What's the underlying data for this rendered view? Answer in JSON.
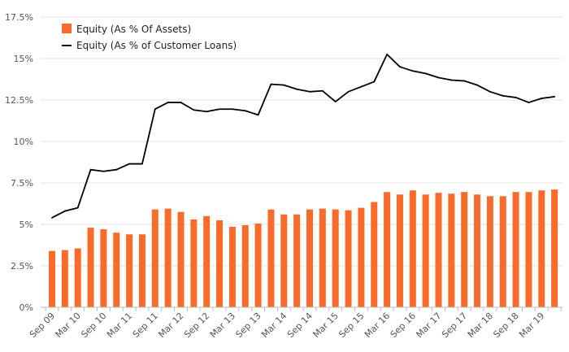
{
  "chart_data": {
    "type": "bar",
    "y_ticks": [
      "0%",
      "2.5%",
      "5%",
      "7.5%",
      "10%",
      "12.5%",
      "15%",
      "17.5%"
    ],
    "ylim": [
      0,
      17.5
    ],
    "grid": true,
    "legend_position": "top-left",
    "colors": {
      "bars": "#f86b2a",
      "line": "#000000",
      "grid": "#e3e3e3"
    },
    "x_ticks": [
      "Sep 09",
      "Mar 10",
      "Sep 10",
      "Mar 11",
      "Sep 11",
      "Mar 12",
      "Sep 12",
      "Mar 13",
      "Sep 13",
      "Mar 14",
      "Sep 14",
      "Mar 15",
      "Sep 15",
      "Mar 16",
      "Sep 16",
      "Mar 17",
      "Sep 17",
      "Mar 18",
      "Sep 18",
      "Mar 19"
    ],
    "series": [
      {
        "name": "Equity (As % Of Assets)",
        "type": "bar",
        "values": [
          3.4,
          3.45,
          3.55,
          4.8,
          4.7,
          4.5,
          4.4,
          4.4,
          5.9,
          5.95,
          5.75,
          5.3,
          5.5,
          5.25,
          4.85,
          4.95,
          5.05,
          5.9,
          5.6,
          5.6,
          5.9,
          5.95,
          5.9,
          5.85,
          6.0,
          6.35,
          6.95,
          6.8,
          7.05,
          6.8,
          6.9,
          6.85,
          6.95,
          6.8,
          6.7,
          6.7,
          6.95,
          6.95,
          7.05,
          7.1
        ]
      },
      {
        "name": "Equity (As % of Customer Loans)",
        "type": "line",
        "values": [
          5.4,
          5.8,
          6.0,
          8.3,
          8.2,
          8.3,
          8.65,
          8.65,
          11.95,
          12.35,
          12.35,
          11.9,
          11.8,
          11.95,
          11.95,
          11.85,
          11.6,
          13.45,
          13.4,
          13.15,
          13.0,
          13.05,
          12.4,
          13.0,
          13.3,
          13.6,
          15.25,
          14.5,
          14.25,
          14.1,
          13.85,
          13.7,
          13.65,
          13.4,
          13.0,
          12.75,
          12.65,
          12.35,
          12.6,
          12.7
        ]
      }
    ]
  }
}
